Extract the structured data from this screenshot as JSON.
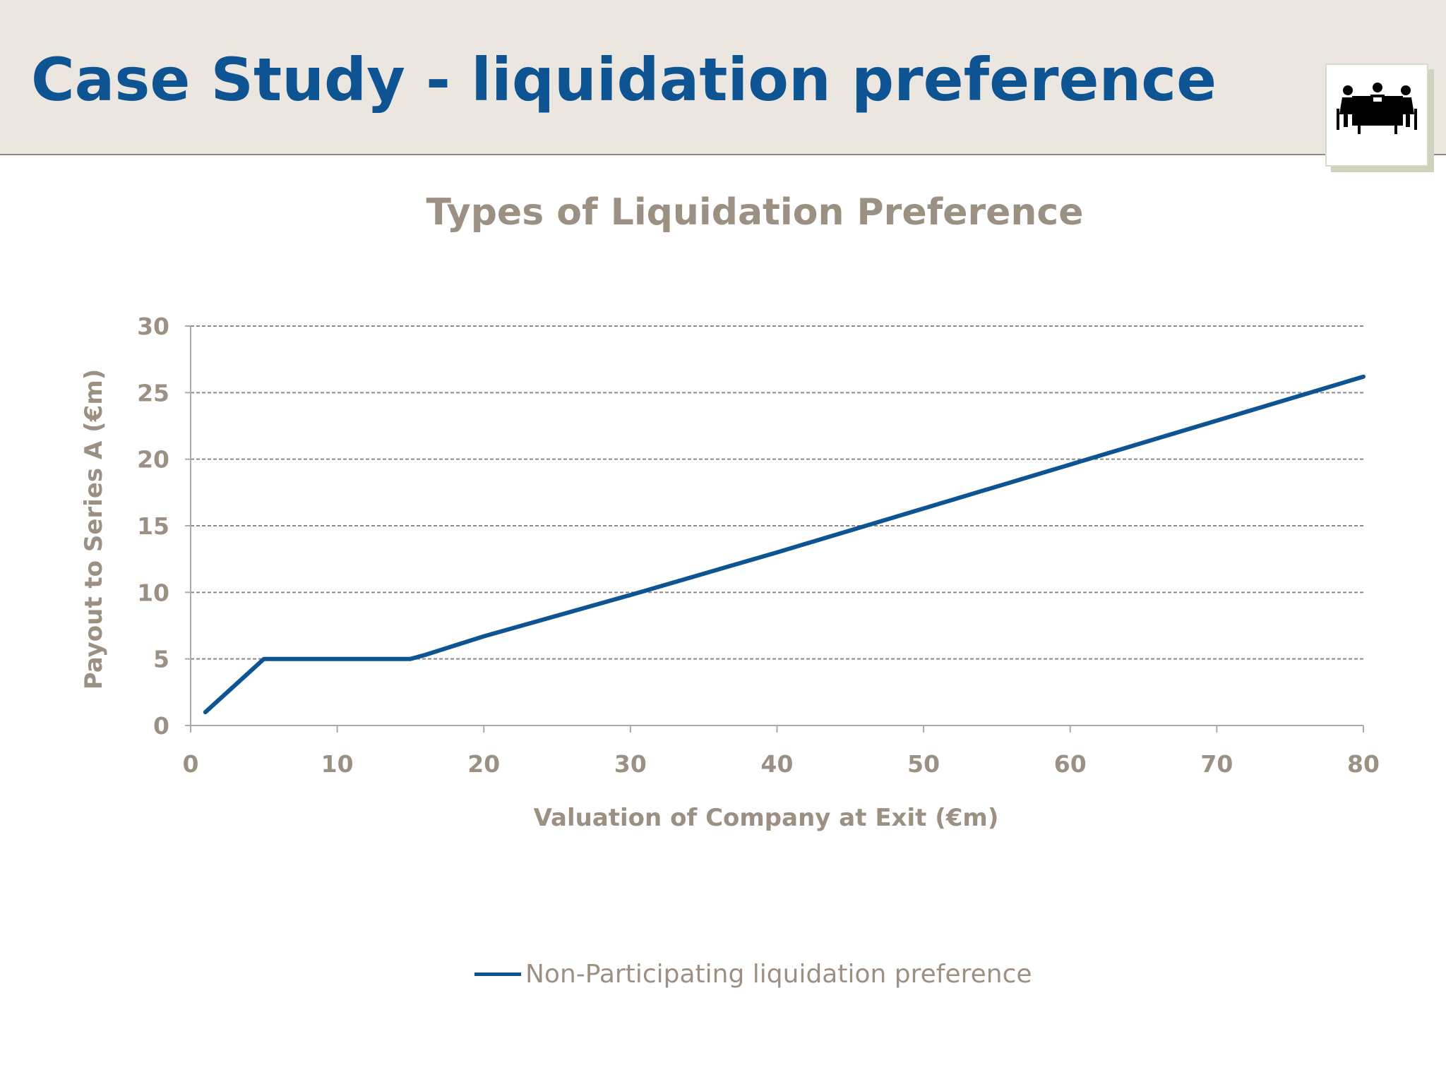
{
  "header": {
    "title": "Case Study - liquidation preference",
    "logo_icon": "meeting-table-icon"
  },
  "chart_data": {
    "type": "line",
    "title": "Types of Liquidation Preference",
    "xlabel": "Valuation of Company at Exit (€m)",
    "ylabel": "Payout to Series A (€m)",
    "xlim": [
      0,
      80
    ],
    "ylim": [
      0,
      30
    ],
    "xticks": [
      0,
      10,
      20,
      30,
      40,
      50,
      60,
      70,
      80
    ],
    "yticks": [
      0,
      5,
      10,
      15,
      20,
      25,
      30
    ],
    "grid": "horizontal dashed",
    "legend_position": "bottom",
    "series": [
      {
        "name": "Non-Participating liquidation preference",
        "color": "#0e5492",
        "x": [
          1,
          4,
          5,
          6,
          15,
          16,
          20,
          30,
          40,
          50,
          60,
          70,
          80
        ],
        "y": [
          1,
          4,
          5,
          5,
          5,
          5.3,
          6.7,
          9.8,
          13,
          16.3,
          19.6,
          22.9,
          26.2
        ]
      }
    ],
    "colors": {
      "axis_text": "#9c9083",
      "gridline": "#8a8a8a",
      "axis_line": "#b0aaa2"
    }
  }
}
